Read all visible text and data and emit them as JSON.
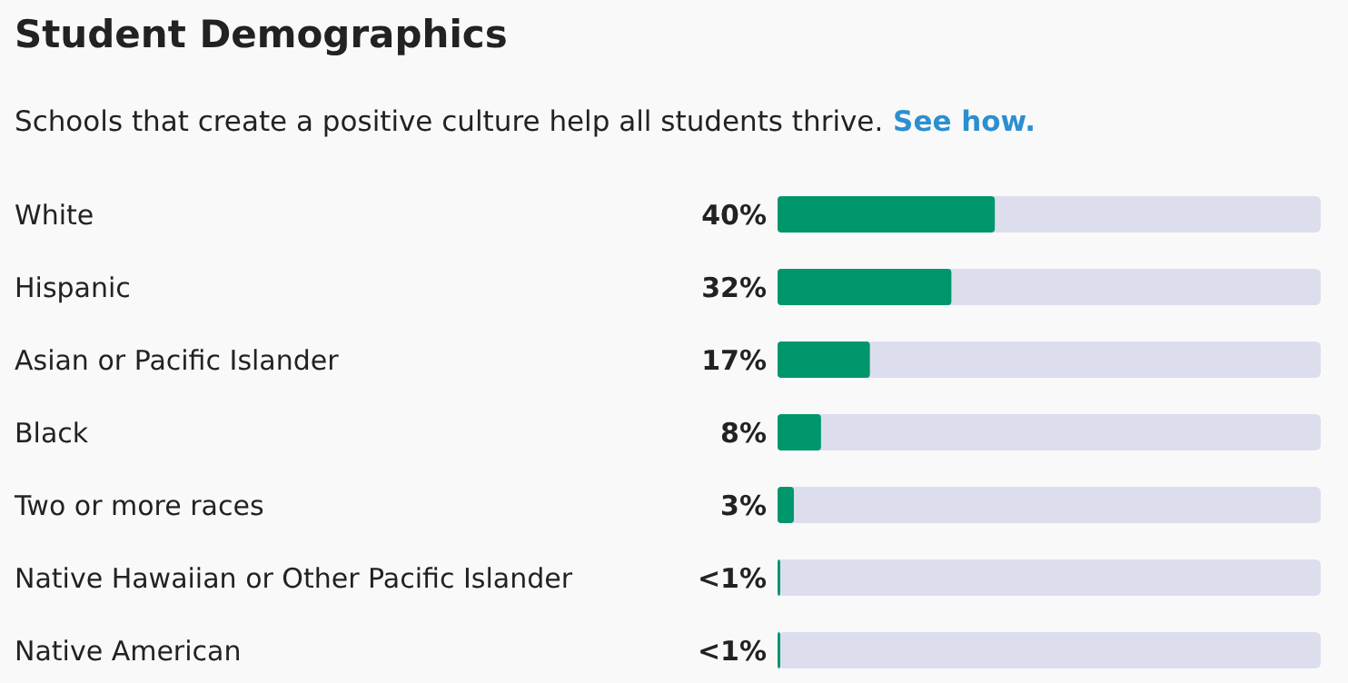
{
  "chart_data": {
    "type": "bar",
    "orientation": "horizontal",
    "title": "Student Demographics",
    "subtitle": "Schools that create a positive culture help all students thrive.",
    "annotations": [
      "See how."
    ],
    "categories": [
      "White",
      "Hispanic",
      "Asian or Pacific Islander",
      "Black",
      "Two or more races",
      "Native Hawaiian or Other Pacific Islander",
      "Native American"
    ],
    "values": [
      40,
      32,
      17,
      8,
      3,
      0.5,
      0.5
    ],
    "value_labels": [
      "40%",
      "32%",
      "17%",
      "8%",
      "3%",
      "<1%",
      "<1%"
    ],
    "color": "#00966b",
    "xlim": [
      0,
      100
    ]
  }
}
